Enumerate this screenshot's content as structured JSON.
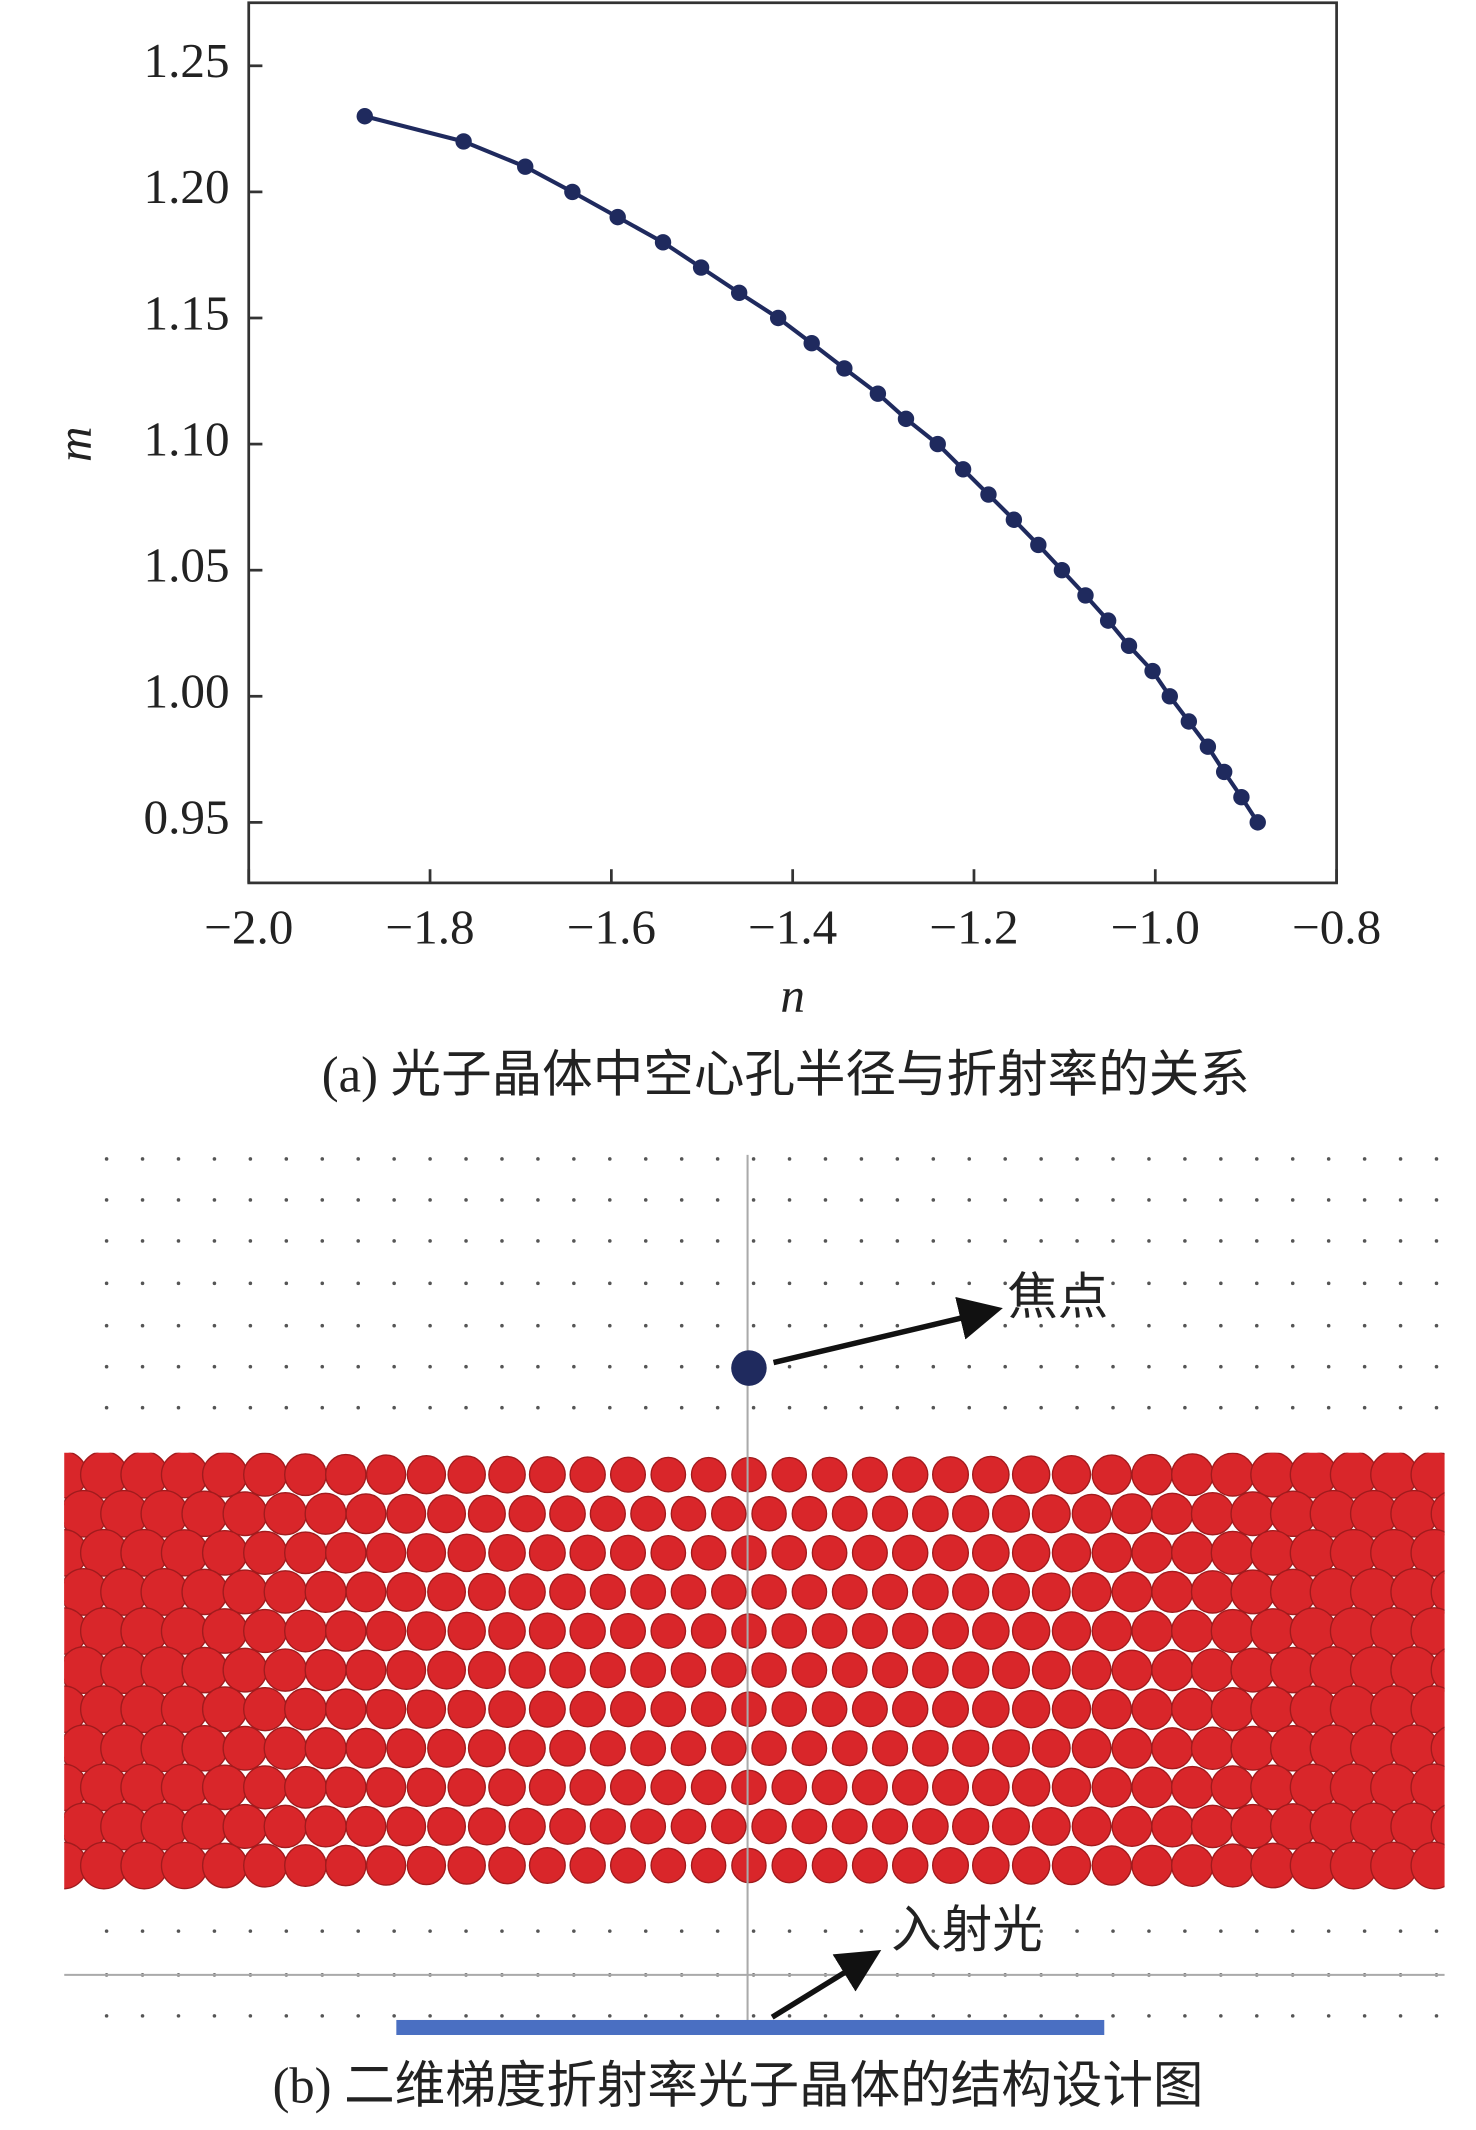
{
  "chart_data": {
    "type": "line",
    "x_label": "n",
    "y_label": "m",
    "caption": "(a) 光子晶体中空心孔半径与折射率的关系",
    "x": [
      -1.872,
      -1.763,
      -1.695,
      -1.643,
      -1.593,
      -1.543,
      -1.501,
      -1.459,
      -1.416,
      -1.379,
      -1.343,
      -1.306,
      -1.275,
      -1.24,
      -1.212,
      -1.184,
      -1.156,
      -1.129,
      -1.103,
      -1.077,
      -1.052,
      -1.029,
      -1.003,
      -0.984,
      -0.963,
      -0.942,
      -0.924,
      -0.905,
      -0.887
    ],
    "series": [
      {
        "color": "#1f2a5e",
        "values": [
          1.23,
          1.22,
          1.21,
          1.2,
          1.19,
          1.18,
          1.17,
          1.16,
          1.15,
          1.14,
          1.13,
          1.12,
          1.11,
          1.1,
          1.09,
          1.08,
          1.07,
          1.06,
          1.05,
          1.04,
          1.03,
          1.02,
          1.01,
          1.0,
          0.99,
          0.98,
          0.97,
          0.96,
          0.95
        ]
      }
    ],
    "xlim": [
      -2.0,
      -0.8
    ],
    "ylim": [
      0.926,
      1.275
    ],
    "xticks": [
      {
        "value": -2.0,
        "label": "−2.0"
      },
      {
        "value": -1.8,
        "label": "−1.8"
      },
      {
        "value": -1.6,
        "label": "−1.6"
      },
      {
        "value": -1.4,
        "label": "−1.4"
      },
      {
        "value": -1.2,
        "label": "−1.2"
      },
      {
        "value": -1.0,
        "label": "−1.0"
      },
      {
        "value": -0.8,
        "label": "−0.8"
      }
    ],
    "yticks": [
      0.95,
      {
        "value": 1.0,
        "label": "1.00"
      },
      1.05,
      {
        "value": 1.1,
        "label": "1.10"
      },
      1.15,
      {
        "value": 1.2,
        "label": "1.20"
      },
      1.25
    ]
  },
  "diagram": {
    "focus_label": "焦点",
    "incident_label": "入射光",
    "caption": "(b) 二维梯度折射率光子晶体的结构设计图"
  }
}
